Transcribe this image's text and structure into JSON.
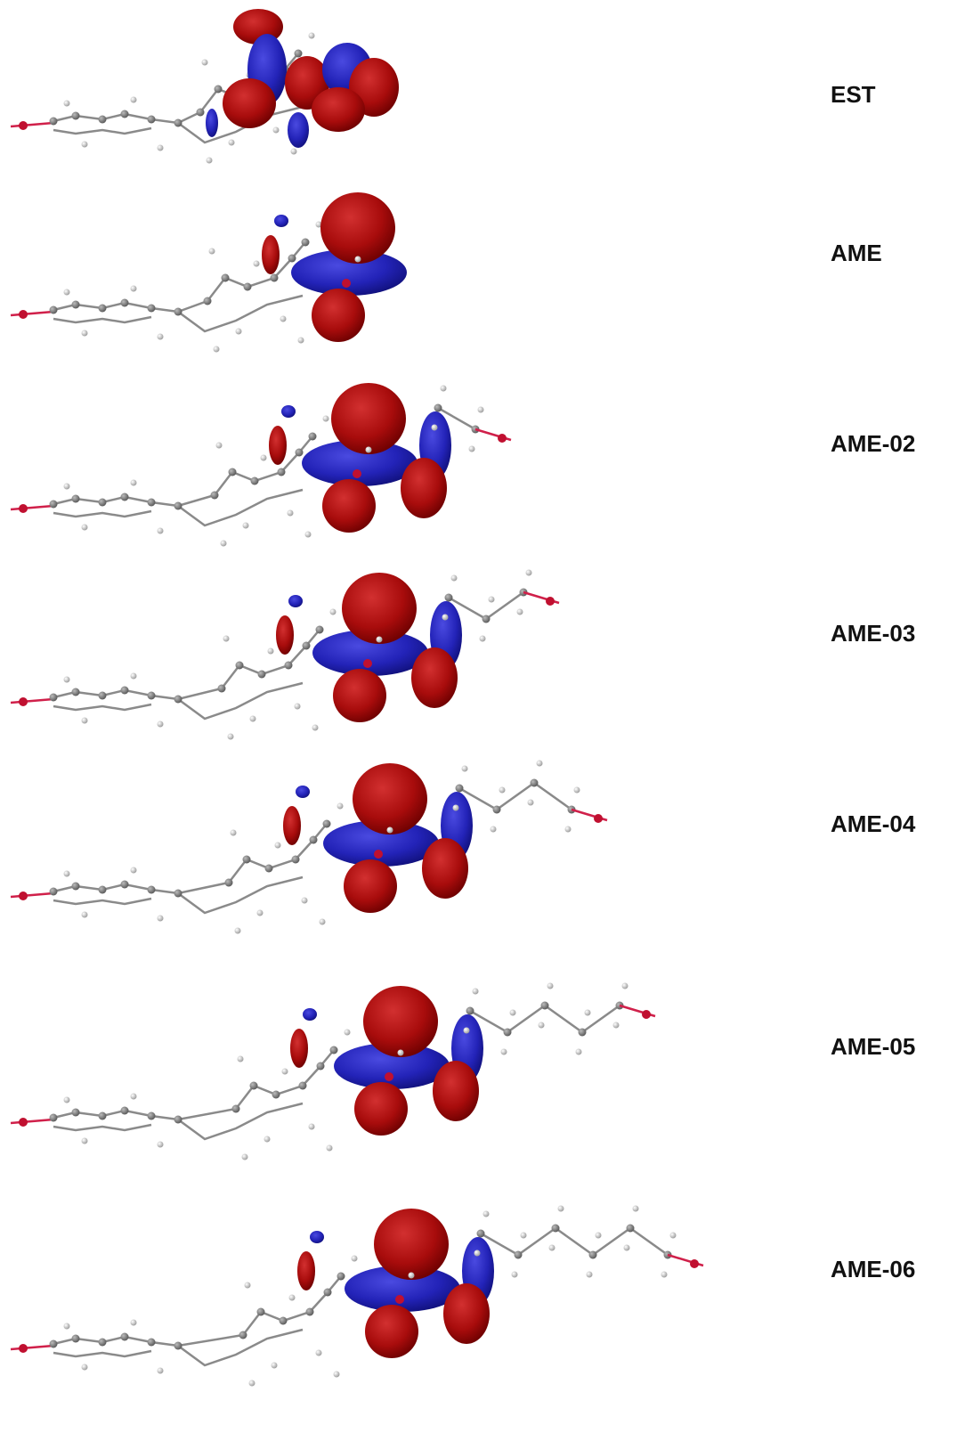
{
  "labels": [
    "EST",
    "AME",
    "AME-02",
    "AME-03",
    "AME-04",
    "AME-05",
    "AME-06"
  ]
}
